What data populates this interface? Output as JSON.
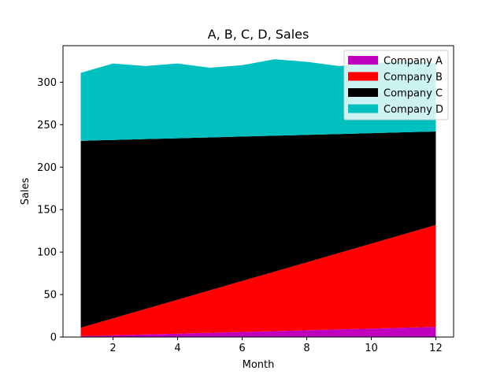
{
  "chart_data": {
    "type": "area",
    "stacked": true,
    "title": "A, B, C, D, Sales",
    "xlabel": "Month",
    "ylabel": "Sales",
    "x": [
      1,
      2,
      3,
      4,
      5,
      6,
      7,
      8,
      9,
      10,
      11,
      12
    ],
    "xlim": [
      0.45,
      12.55
    ],
    "ylim": [
      0,
      343
    ],
    "xticks": [
      2,
      4,
      6,
      8,
      10,
      12
    ],
    "yticks": [
      0,
      50,
      100,
      150,
      200,
      250,
      300
    ],
    "grid": false,
    "legend_position": "top-right",
    "series": [
      {
        "name": "Company A",
        "color": "#bf00bf",
        "values": [
          1,
          2,
          3,
          4,
          5,
          6,
          7,
          8,
          9,
          10,
          11,
          12
        ]
      },
      {
        "name": "Company B",
        "color": "#ff0000",
        "values": [
          10,
          20,
          30,
          40,
          50,
          60,
          70,
          80,
          90,
          100,
          110,
          120
        ]
      },
      {
        "name": "Company C",
        "color": "#000000",
        "values": [
          220,
          210,
          200,
          190,
          180,
          170,
          160,
          150,
          140,
          130,
          120,
          110
        ]
      },
      {
        "name": "Company D",
        "color": "#00bfbf",
        "values": [
          80,
          90,
          86,
          88,
          82,
          84,
          90,
          86,
          80,
          82,
          84,
          80
        ]
      }
    ]
  }
}
